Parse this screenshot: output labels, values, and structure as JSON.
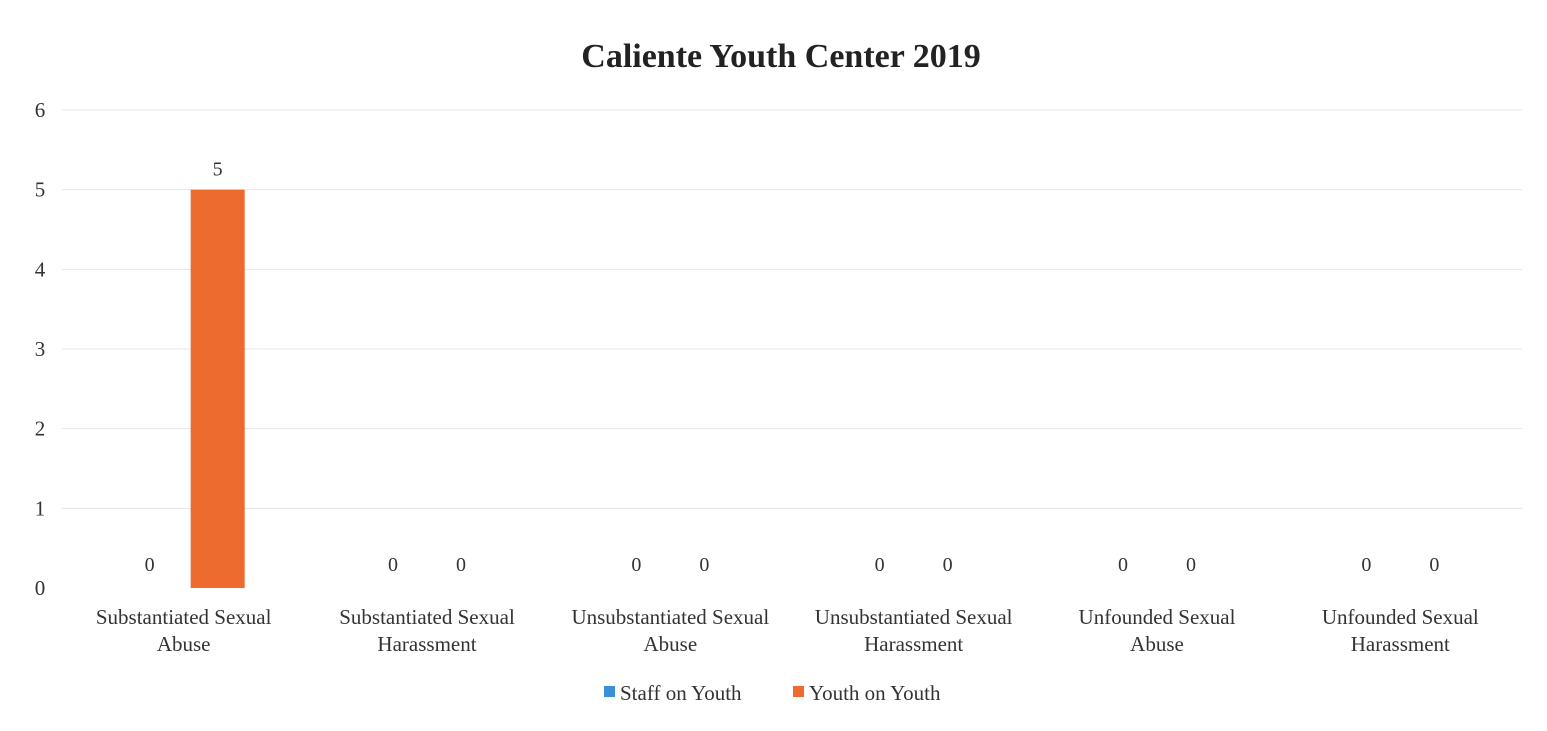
{
  "chart_data": {
    "type": "bar",
    "title": "Caliente Youth Center 2019",
    "xlabel": "",
    "ylabel": "",
    "ylim": [
      0,
      6
    ],
    "yticks": [
      "0",
      "1",
      "2",
      "3",
      "4",
      "5",
      "6"
    ],
    "grid": true,
    "legend_position": "bottom",
    "categories": [
      [
        "Substantiated Sexual",
        "Abuse"
      ],
      [
        "Substantiated Sexual",
        "Harassment"
      ],
      [
        "Unsubstantiated Sexual",
        "Abuse"
      ],
      [
        "Unsubstantiated Sexual",
        "Harassment"
      ],
      [
        "Unfounded Sexual",
        "Abuse"
      ],
      [
        "Unfounded Sexual",
        "Harassment"
      ]
    ],
    "series": [
      {
        "name": "Staff on Youth",
        "color": "#3a8fd6",
        "values": [
          0,
          0,
          0,
          0,
          0,
          0
        ],
        "data_labels": [
          "0",
          "0",
          "0",
          "0",
          "0",
          "0"
        ]
      },
      {
        "name": "Youth on Youth",
        "color": "#ed6b2f",
        "values": [
          5,
          0,
          0,
          0,
          0,
          0
        ],
        "data_labels": [
          "5",
          "0",
          "0",
          "0",
          "0",
          "0"
        ]
      }
    ]
  }
}
